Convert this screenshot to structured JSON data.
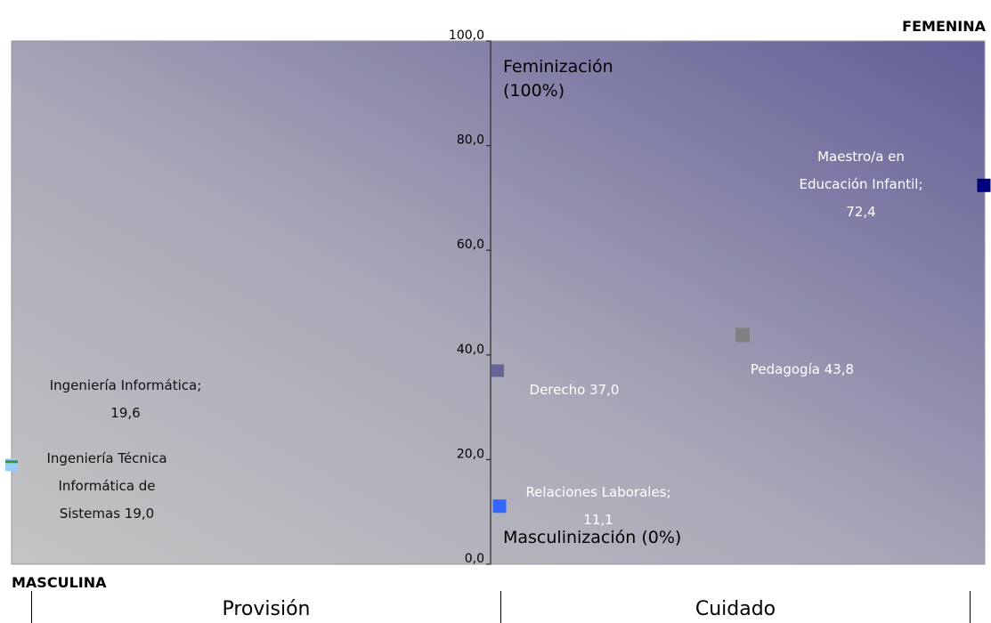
{
  "chart_data": {
    "type": "scatter",
    "title": "",
    "xlabel": "",
    "ylabel": "",
    "ylim": [
      0,
      100
    ],
    "yticks": [
      "0,0",
      "20,0",
      "40,0",
      "60,0",
      "80,0",
      "100,0"
    ],
    "grid": false,
    "legend": "none",
    "corner_labels": {
      "top_right": "FEMENINA",
      "bottom_left": "MASCULINA"
    },
    "axis_annotations": {
      "top": "Feminización\n(100%)",
      "bottom": "Masculinización (0%)"
    },
    "categories_bottom": [
      "Provisión",
      "Cuidado"
    ],
    "points": [
      {
        "name": "Ingeniería Técnica Informática de Sistemas",
        "label": "Ingeniería Técnica\nInformática de\nSistemas  19,0",
        "y": 19.0,
        "color": "#99ccff"
      },
      {
        "name": "Ingeniería Informática",
        "label": "Ingeniería Informática;\n19,6",
        "y": 19.6,
        "color": "#339933"
      },
      {
        "name": "Relaciones Laborales",
        "label": "Relaciones Laborales;\n11,1",
        "y": 11.1,
        "color": "#3366ff"
      },
      {
        "name": "Derecho",
        "label": "Derecho 37,0",
        "y": 37.0,
        "color": "#666699"
      },
      {
        "name": "Pedagogía",
        "label": "Pedagogía 43,8",
        "y": 43.8,
        "color": "#808080"
      },
      {
        "name": "Maestro/a en Educación Infantil",
        "label": "Maestro/a en\nEducación Infantil;\n72,4",
        "y": 72.4,
        "color": "#000080"
      }
    ]
  }
}
